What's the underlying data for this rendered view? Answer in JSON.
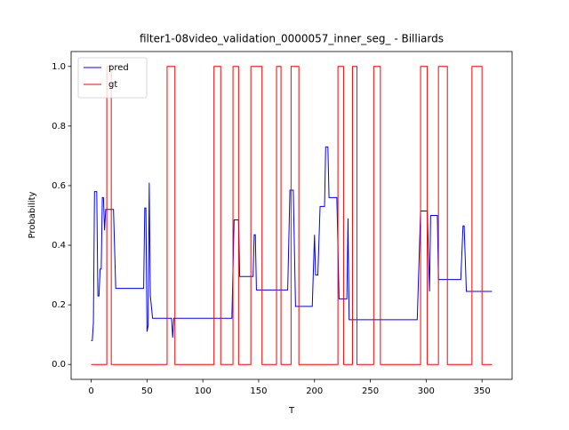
{
  "chart_data": {
    "type": "line",
    "title": "filter1-08video_validation_0000057_inner_seg_ - Billiards",
    "x_label": "T",
    "y_label": "Probability",
    "xlim": [
      -17.95,
      376.95
    ],
    "ylim": [
      -0.05,
      1.05
    ],
    "xticks": [
      0,
      50,
      100,
      150,
      200,
      250,
      300,
      350
    ],
    "yticks": [
      {
        "value": 0,
        "label": "0.0"
      },
      {
        "value": 0.2,
        "label": "0.2"
      },
      {
        "value": 0.4,
        "label": "0.4"
      },
      {
        "value": 0.6,
        "label": "0.6"
      },
      {
        "value": 0.8,
        "label": "0.8"
      },
      {
        "value": 1,
        "label": "1.0"
      }
    ],
    "legend": "upper left",
    "series": [
      {
        "name": "pred",
        "color": "#0000ff",
        "x": [
          0,
          1,
          2,
          3,
          5,
          6,
          7,
          8,
          9,
          10,
          11,
          12,
          13,
          20,
          22,
          47,
          48,
          49,
          50,
          51,
          52,
          53,
          55,
          72,
          73,
          74,
          126,
          128,
          132,
          133,
          145,
          146,
          147,
          148,
          176,
          178,
          181,
          183,
          198,
          200,
          201,
          203,
          205,
          209,
          210,
          212,
          213,
          220,
          222,
          229,
          230,
          231,
          292,
          295,
          301,
          303,
          304,
          310,
          311,
          331,
          333,
          334,
          336,
          359
        ],
        "values": [
          0.08,
          0.08,
          0.14,
          0.58,
          0.58,
          0.23,
          0.23,
          0.32,
          0.32,
          0.56,
          0.56,
          0.45,
          0.52,
          0.52,
          0.255,
          0.255,
          0.525,
          0.525,
          0.11,
          0.13,
          0.61,
          0.23,
          0.155,
          0.155,
          0.09,
          0.155,
          0.155,
          0.485,
          0.485,
          0.295,
          0.295,
          0.435,
          0.435,
          0.25,
          0.25,
          0.585,
          0.585,
          0.195,
          0.195,
          0.435,
          0.3,
          0.3,
          0.53,
          0.53,
          0.73,
          0.73,
          0.56,
          0.56,
          0.22,
          0.22,
          0.49,
          0.15,
          0.15,
          0.515,
          0.515,
          0.245,
          0.5,
          0.5,
          0.285,
          0.285,
          0.465,
          0.465,
          0.245,
          0.245
        ]
      },
      {
        "name": "gt",
        "color": "#ff0000",
        "x": [
          0,
          14,
          14,
          18,
          18,
          68,
          68,
          75,
          75,
          110,
          110,
          116,
          116,
          127,
          127,
          132,
          132,
          143,
          143,
          153,
          153,
          166,
          166,
          170,
          170,
          179,
          179,
          186,
          186,
          221,
          221,
          226,
          226,
          234,
          234,
          238,
          238,
          253,
          253,
          259,
          259,
          295,
          295,
          301,
          301,
          311,
          311,
          319,
          319,
          341,
          341,
          350,
          350,
          359
        ],
        "values": [
          0,
          0,
          1,
          1,
          0,
          0,
          1,
          1,
          0,
          0,
          1,
          1,
          0,
          0,
          1,
          1,
          0,
          0,
          1,
          1,
          0,
          0,
          1,
          1,
          0,
          0,
          1,
          1,
          0,
          0,
          1,
          1,
          0,
          0,
          1,
          1,
          0,
          0,
          1,
          1,
          0,
          0,
          1,
          1,
          0,
          0,
          1,
          1,
          0,
          0,
          1,
          1,
          0,
          0
        ]
      }
    ]
  }
}
